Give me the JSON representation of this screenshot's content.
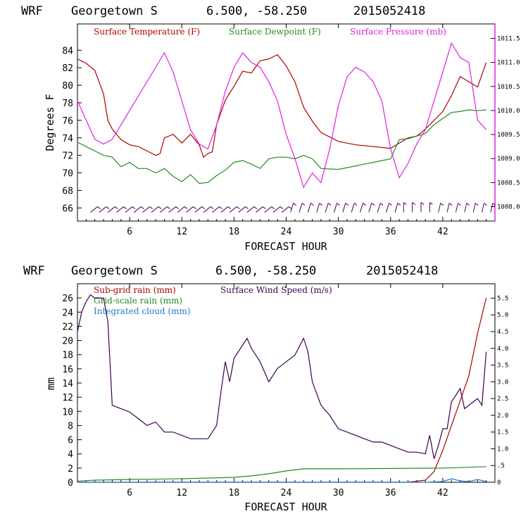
{
  "top": {
    "header": {
      "model": "WRF",
      "location": "Georgetown S",
      "coords": "6.500, -58.250",
      "init": "2015052418"
    },
    "legend": [
      "Surface Temperature (F)",
      "Surface Dewpoint (F)",
      "Surface Pressure (mb)"
    ],
    "ylabel": "Degrees F",
    "xlabel": "FORECAST HOUR",
    "xticks": [
      "6",
      "12",
      "18",
      "24",
      "30",
      "36",
      "42"
    ],
    "yticks": [
      "66",
      "68",
      "70",
      "72",
      "74",
      "76",
      "78",
      "80",
      "82",
      "84"
    ],
    "rticks": [
      "1008.0",
      "1008.5",
      "1009.0",
      "1009.5",
      "1010.0",
      "1010.5",
      "1011.0",
      "1011.5"
    ]
  },
  "bottom": {
    "header": {
      "model": "WRF",
      "location": "Georgetown S",
      "coords": "6.500, -58.250",
      "init": "2015052418"
    },
    "legend": [
      "Sub-grid rain (mm)",
      "Surface Wind Speed (m/s)",
      "Grid-scale rain (mm)",
      "Integrated cloud (mm)"
    ],
    "ylabel": "mm",
    "xlabel": "FORECAST HOUR",
    "xticks": [
      "6",
      "12",
      "18",
      "24",
      "30",
      "36",
      "42"
    ],
    "yticks": [
      "0",
      "2",
      "4",
      "6",
      "8",
      "10",
      "12",
      "14",
      "16",
      "18",
      "20",
      "22",
      "24",
      "26"
    ],
    "rticks": [
      "0",
      ".5",
      "1.0",
      "1.5",
      "2.0",
      "2.5",
      "3.0",
      "3.5",
      "4.0",
      "4.5",
      "5.0",
      "5.5"
    ]
  },
  "colors": {
    "temperature": "#b00000",
    "dewpoint": "#228b22",
    "pressure": "#e020e0",
    "wind": "#3a0050",
    "cloud": "#1e78d0",
    "barbs": "#4a0060"
  },
  "chart_data": [
    {
      "type": "line",
      "title": "WRF Georgetown S 6.500, -58.250 2015052418",
      "xlabel": "FORECAST HOUR",
      "ylabel": "Degrees F",
      "xlim": [
        0,
        48
      ],
      "ylim": [
        64.5,
        87
      ],
      "y2lim": [
        1007.7,
        1011.8
      ],
      "series": [
        {
          "name": "Surface Temperature (F)",
          "axis": "left",
          "x": [
            0,
            1,
            2,
            3,
            3.5,
            4,
            5,
            6,
            7,
            8,
            9,
            9.5,
            10,
            11,
            12,
            13,
            14,
            14.5,
            15,
            15.5,
            16,
            17,
            18,
            19,
            20,
            21,
            22,
            23,
            24,
            25,
            26,
            27,
            28,
            30,
            32,
            34,
            36,
            37,
            38,
            39,
            40,
            41,
            42,
            43,
            44,
            45,
            46,
            47
          ],
          "y": [
            83,
            82.5,
            81.7,
            79,
            76,
            75,
            73.8,
            73.2,
            73,
            72.5,
            72,
            72.2,
            74,
            74.4,
            73.4,
            74.4,
            73.2,
            71.8,
            72.2,
            72.4,
            75.5,
            78.3,
            79.9,
            81.6,
            81.4,
            82.8,
            83,
            83.5,
            82.2,
            80.4,
            77.5,
            75.9,
            74.6,
            73.6,
            73.2,
            73,
            72.8,
            73.4,
            74,
            74.2,
            75,
            76,
            77,
            78.8,
            81,
            80.4,
            79.8,
            82.6
          ]
        },
        {
          "name": "Surface Dewpoint (F)",
          "axis": "left",
          "x": [
            0,
            1,
            2,
            3,
            4,
            5,
            6,
            7,
            8,
            9,
            10,
            11,
            12,
            13,
            14,
            15,
            16,
            17,
            18,
            19,
            20,
            21,
            22,
            23,
            24,
            25,
            26,
            27,
            28,
            30,
            32,
            34,
            36,
            37,
            38,
            40,
            41,
            42,
            43,
            44,
            45,
            46,
            47
          ],
          "y": [
            73.5,
            73,
            72.5,
            72,
            71.8,
            70.7,
            71.2,
            70.5,
            70.5,
            70,
            70.5,
            69.6,
            69,
            69.8,
            68.8,
            68.9,
            69.7,
            70.3,
            71.2,
            71.4,
            71,
            70.5,
            71.6,
            71.8,
            71.8,
            71.6,
            72,
            71.6,
            70.5,
            70.4,
            70.8,
            71.2,
            71.6,
            73.8,
            73.9,
            74.5,
            75.5,
            76.2,
            76.9,
            77,
            77.2,
            77.1,
            77.2
          ]
        },
        {
          "name": "Surface Pressure (mb)",
          "axis": "right",
          "x": [
            0,
            1,
            2,
            3,
            4,
            5,
            6,
            7,
            8,
            9,
            10,
            11,
            12,
            13,
            14,
            15,
            16,
            17,
            18,
            19,
            20,
            21,
            22,
            23,
            24,
            25,
            26,
            27,
            28,
            29,
            30,
            31,
            32,
            33,
            34,
            35,
            36,
            37,
            38,
            39,
            40,
            41,
            42,
            43,
            44,
            45,
            46,
            47
          ],
          "y": [
            1010.2,
            1009.8,
            1009.4,
            1009.3,
            1009.4,
            1009.7,
            1010.0,
            1010.3,
            1010.6,
            1010.9,
            1011.2,
            1010.8,
            1010.2,
            1009.6,
            1009.3,
            1009.2,
            1009.7,
            1010.4,
            1010.9,
            1011.2,
            1011.0,
            1010.9,
            1010.6,
            1010.2,
            1009.5,
            1009.0,
            1008.4,
            1008.7,
            1008.5,
            1009.2,
            1010.1,
            1010.7,
            1010.9,
            1010.8,
            1010.6,
            1010.2,
            1009.2,
            1008.6,
            1008.9,
            1009.3,
            1009.6,
            1010.2,
            1010.8,
            1011.4,
            1011.1,
            1011.0,
            1009.8,
            1009.6
          ]
        }
      ]
    },
    {
      "type": "line",
      "title": "WRF Georgetown S 6.500, -58.250 2015052418",
      "xlabel": "FORECAST HOUR",
      "ylabel": "mm",
      "xlim": [
        0,
        48
      ],
      "ylim": [
        0,
        28
      ],
      "y2lim": [
        0,
        5.93
      ],
      "series": [
        {
          "name": "Surface Wind Speed (m/s)",
          "axis": "right",
          "x": [
            0,
            0.5,
            1,
            1.5,
            2,
            2.5,
            3,
            3.5,
            4,
            5,
            6,
            7,
            8,
            9,
            10,
            11,
            12,
            13,
            14,
            15,
            16,
            16.5,
            17,
            17.5,
            18,
            19,
            19.5,
            20,
            21,
            22,
            23,
            24,
            25,
            26,
            26.5,
            27,
            28,
            29,
            30,
            31,
            32,
            33,
            34,
            35,
            36,
            37,
            38,
            39,
            40,
            40.5,
            41,
            41.5,
            42,
            42.5,
            43,
            44,
            44.5,
            45,
            46,
            46.5,
            47
          ],
          "y": [
            4.5,
            5.1,
            5.4,
            5.6,
            5.5,
            5.5,
            5.5,
            4.8,
            2.3,
            2.2,
            2.1,
            1.9,
            1.7,
            1.8,
            1.5,
            1.5,
            1.4,
            1.3,
            1.3,
            1.3,
            1.7,
            2.7,
            3.6,
            3.0,
            3.7,
            4.1,
            4.3,
            4.0,
            3.6,
            3.0,
            3.4,
            3.6,
            3.8,
            4.3,
            3.9,
            3.0,
            2.3,
            2.0,
            1.6,
            1.5,
            1.4,
            1.3,
            1.2,
            1.2,
            1.1,
            1.0,
            0.9,
            0.9,
            0.85,
            1.4,
            0.7,
            1.1,
            1.6,
            1.6,
            2.4,
            2.8,
            2.2,
            2.3,
            2.5,
            2.3,
            3.9
          ]
        },
        {
          "name": "Sub-grid rain (mm)",
          "axis": "left",
          "x": [
            0,
            38,
            40,
            41,
            42,
            43,
            44,
            45,
            46,
            47
          ],
          "y": [
            0,
            0,
            0.3,
            1.5,
            4.5,
            8,
            11.5,
            15,
            21,
            26
          ]
        },
        {
          "name": "Grid-scale rain (mm)",
          "axis": "left",
          "x": [
            0,
            2,
            6,
            12,
            18,
            20,
            22,
            24,
            26,
            30,
            36,
            42,
            47
          ],
          "y": [
            0.15,
            0.3,
            0.4,
            0.5,
            0.7,
            0.9,
            1.2,
            1.6,
            1.9,
            1.9,
            1.95,
            2.0,
            2.2
          ]
        },
        {
          "name": "Integrated cloud (mm)",
          "axis": "left",
          "x": [
            0,
            10,
            20,
            30,
            40,
            42,
            43,
            44,
            45,
            46,
            47
          ],
          "y": [
            0,
            0,
            0,
            0,
            0,
            0.1,
            0.5,
            0.2,
            0.1,
            0.4,
            0.1
          ]
        }
      ]
    }
  ]
}
